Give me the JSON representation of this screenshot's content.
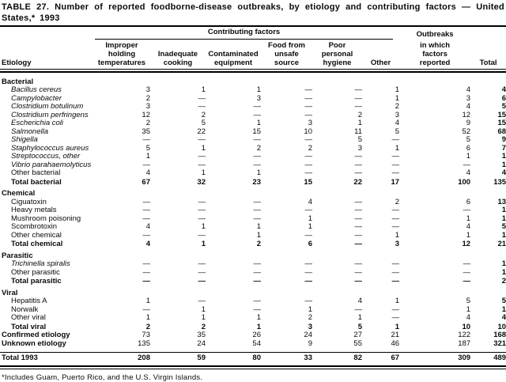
{
  "title": "TABLE 27. Number of reported foodborne-disease outbreaks, by etiology and contributing factors — United States,* 1993",
  "footnote": "*Includes Guam, Puerto Rico, and the U.S. Virgin Islands.",
  "table": {
    "corner_label": "Etiology",
    "group_header": "Contributing factors",
    "outbreaks_top": "Outbreaks",
    "columns": [
      "Improper\nholding\ntemperatures",
      "Inadequate\ncooking",
      "Contaminated\nequipment",
      "Food from\nunsafe\nsource",
      "Poor\npersonal\nhygiene",
      "Other",
      "in which\nfactors\nreported",
      "Total"
    ],
    "sections": [
      {
        "label": "Bacterial",
        "rows": [
          {
            "label": "Bacillus cereus",
            "style": "species",
            "values": [
              "3",
              "1",
              "1",
              "—",
              "—",
              "1",
              "4",
              "4"
            ]
          },
          {
            "label": "Campylobacter",
            "style": "species",
            "values": [
              "2",
              "—",
              "3",
              "—",
              "—",
              "1",
              "3",
              "6"
            ]
          },
          {
            "label": "Clostridium botulinum",
            "style": "species",
            "values": [
              "3",
              "—",
              "—",
              "—",
              "—",
              "2",
              "4",
              "5"
            ]
          },
          {
            "label": "Clostridium perfringens",
            "style": "species",
            "values": [
              "12",
              "2",
              "—",
              "—",
              "2",
              "3",
              "12",
              "15"
            ]
          },
          {
            "label": "Escherichia coli",
            "style": "species",
            "values": [
              "2",
              "5",
              "1",
              "3",
              "1",
              "4",
              "9",
              "15"
            ]
          },
          {
            "label": "Salmonella",
            "style": "species",
            "values": [
              "35",
              "22",
              "15",
              "10",
              "11",
              "5",
              "52",
              "68"
            ]
          },
          {
            "label": "Shigella",
            "style": "species",
            "values": [
              "—",
              "—",
              "—",
              "—",
              "5",
              "—",
              "5",
              "9"
            ]
          },
          {
            "label": "Staphylococcus aureus",
            "style": "species",
            "values": [
              "5",
              "1",
              "2",
              "2",
              "3",
              "1",
              "6",
              "7"
            ]
          },
          {
            "label": "Streptococcus, other",
            "style": "species",
            "values": [
              "1",
              "—",
              "—",
              "—",
              "—",
              "—",
              "1",
              "1"
            ]
          },
          {
            "label": "Vibrio parahaemolyticus",
            "style": "species",
            "values": [
              "—",
              "—",
              "—",
              "—",
              "—",
              "—",
              "—",
              "1"
            ]
          },
          {
            "label": "Other bacterial",
            "style": "plain",
            "values": [
              "4",
              "1",
              "1",
              "—",
              "—",
              "—",
              "4",
              "4"
            ]
          },
          {
            "label": "Total bacterial",
            "style": "total",
            "values": [
              "67",
              "32",
              "23",
              "15",
              "22",
              "17",
              "100",
              "135"
            ]
          }
        ]
      },
      {
        "label": "Chemical",
        "rows": [
          {
            "label": "Ciguatoxin",
            "style": "plain",
            "values": [
              "—",
              "—",
              "—",
              "4",
              "—",
              "2",
              "6",
              "13"
            ]
          },
          {
            "label": "Heavy metals",
            "style": "plain",
            "values": [
              "—",
              "—",
              "—",
              "—",
              "—",
              "—",
              "—",
              "1"
            ]
          },
          {
            "label": "Mushroom poisoning",
            "style": "plain",
            "values": [
              "—",
              "—",
              "—",
              "1",
              "—",
              "—",
              "1",
              "1"
            ]
          },
          {
            "label": "Scombrotoxin",
            "style": "plain",
            "values": [
              "4",
              "1",
              "1",
              "1",
              "—",
              "—",
              "4",
              "5"
            ]
          },
          {
            "label": "Other chemical",
            "style": "plain",
            "values": [
              "—",
              "—",
              "1",
              "—",
              "—",
              "1",
              "1",
              "1"
            ]
          },
          {
            "label": "Total chemical",
            "style": "total",
            "values": [
              "4",
              "1",
              "2",
              "6",
              "—",
              "3",
              "12",
              "21"
            ]
          }
        ]
      },
      {
        "label": "Parasitic",
        "rows": [
          {
            "label": "Trichinella spiralis",
            "style": "species",
            "values": [
              "—",
              "—",
              "—",
              "—",
              "—",
              "—",
              "—",
              "1"
            ]
          },
          {
            "label": "Other parasitic",
            "style": "plain",
            "values": [
              "—",
              "—",
              "—",
              "—",
              "—",
              "—",
              "—",
              "1"
            ]
          },
          {
            "label": "Total parasitic",
            "style": "total",
            "values": [
              "—",
              "—",
              "—",
              "—",
              "—",
              "—",
              "—",
              "2"
            ]
          }
        ]
      },
      {
        "label": "Viral",
        "rows": [
          {
            "label": "Hepatitis A",
            "style": "plain",
            "values": [
              "1",
              "—",
              "—",
              "—",
              "4",
              "1",
              "5",
              "5"
            ]
          },
          {
            "label": "Norwalk",
            "style": "plain",
            "values": [
              "—",
              "1",
              "—",
              "1",
              "—",
              "—",
              "1",
              "1"
            ]
          },
          {
            "label": "Other viral",
            "style": "plain",
            "values": [
              "1",
              "1",
              "1",
              "2",
              "1",
              "—",
              "4",
              "4"
            ]
          },
          {
            "label": "Total viral",
            "style": "total",
            "values": [
              "2",
              "2",
              "1",
              "3",
              "5",
              "1",
              "10",
              "10"
            ]
          }
        ]
      }
    ],
    "summary_rows": [
      {
        "label": "Confirmed etiology",
        "style": "summary",
        "values": [
          "73",
          "35",
          "26",
          "24",
          "27",
          "21",
          "122",
          "168"
        ]
      },
      {
        "label": "Unknown etiology",
        "style": "summary",
        "values": [
          "135",
          "24",
          "54",
          "9",
          "55",
          "46",
          "187",
          "321"
        ]
      },
      {
        "label": "Total 1993",
        "style": "grand",
        "values": [
          "208",
          "59",
          "80",
          "33",
          "82",
          "67",
          "309",
          "489"
        ]
      }
    ]
  }
}
